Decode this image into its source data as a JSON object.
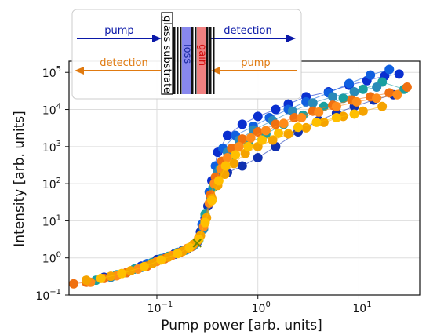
{
  "chart_data": {
    "type": "scatter",
    "xlabel": "Pump power [arb. units]",
    "ylabel": "Intensity [arb. units]",
    "xscale": "log",
    "yscale": "log",
    "xlim": [
      0.0135,
      40
    ],
    "ylim": [
      0.1,
      200000
    ],
    "grid": true,
    "x_ticks": [
      {
        "value": 0.1,
        "base": "10",
        "exp": "−1"
      },
      {
        "value": 1,
        "base": "10",
        "exp": "0"
      },
      {
        "value": 10,
        "base": "10",
        "exp": "1"
      }
    ],
    "y_ticks": [
      {
        "value": 0.1,
        "base": "10",
        "exp": "−1"
      },
      {
        "value": 1,
        "base": "10",
        "exp": "0"
      },
      {
        "value": 10,
        "base": "10",
        "exp": "1"
      },
      {
        "value": 100,
        "base": "10",
        "exp": "2"
      },
      {
        "value": 1000,
        "base": "10",
        "exp": "3"
      },
      {
        "value": 10000,
        "base": "10",
        "exp": "4"
      },
      {
        "value": 100000,
        "base": "10",
        "exp": "5"
      }
    ],
    "series": [
      {
        "color": "#0a2fd0",
        "points": [
          [
            0.07,
            0.6
          ],
          [
            0.1,
            0.85
          ],
          [
            0.15,
            1.25
          ],
          [
            0.2,
            1.7
          ],
          [
            0.25,
            2.6
          ],
          [
            0.3,
            12
          ],
          [
            0.35,
            120
          ],
          [
            0.4,
            700
          ],
          [
            0.5,
            2000
          ],
          [
            0.7,
            4000
          ],
          [
            1.0,
            6500
          ],
          [
            1.5,
            10000
          ],
          [
            2.0,
            14000
          ],
          [
            3.0,
            22000
          ],
          [
            5.0,
            30000
          ],
          [
            8.0,
            45000
          ],
          [
            12.0,
            60000
          ],
          [
            18.0,
            80000
          ],
          [
            25.0,
            90000
          ]
        ]
      },
      {
        "color": "#1060e0",
        "points": [
          [
            0.05,
            0.4
          ],
          [
            0.08,
            0.7
          ],
          [
            0.12,
            1.0
          ],
          [
            0.18,
            1.6
          ],
          [
            0.24,
            2.4
          ],
          [
            0.28,
            8
          ],
          [
            0.33,
            60
          ],
          [
            0.38,
            300
          ],
          [
            0.45,
            900
          ],
          [
            0.6,
            2000
          ],
          [
            0.9,
            3500
          ],
          [
            1.3,
            6000
          ],
          [
            2.0,
            10000
          ],
          [
            3.0,
            16000
          ],
          [
            5.0,
            28000
          ],
          [
            8.0,
            50000
          ],
          [
            13.0,
            85000
          ],
          [
            20.0,
            120000
          ]
        ]
      },
      {
        "color": "#1030b0",
        "points": [
          [
            0.03,
            0.3
          ],
          [
            0.06,
            0.5
          ],
          [
            0.1,
            0.9
          ],
          [
            0.15,
            1.3
          ],
          [
            0.22,
            2.0
          ],
          [
            0.27,
            5
          ],
          [
            0.32,
            25
          ],
          [
            0.38,
            90
          ],
          [
            0.5,
            200
          ],
          [
            0.7,
            300
          ],
          [
            1.0,
            500
          ],
          [
            1.5,
            1000
          ],
          [
            2.5,
            2500
          ],
          [
            4.0,
            5000
          ],
          [
            6.0,
            8000
          ],
          [
            9.0,
            12000
          ],
          [
            14.0,
            18000
          ],
          [
            22.0,
            25000
          ]
        ]
      },
      {
        "color": "#1aa0a0",
        "points": [
          [
            0.025,
            0.25
          ],
          [
            0.04,
            0.35
          ],
          [
            0.06,
            0.5
          ],
          [
            0.09,
            0.75
          ],
          [
            0.13,
            1.1
          ],
          [
            0.19,
            1.6
          ],
          [
            0.26,
            3
          ],
          [
            0.3,
            15
          ],
          [
            0.36,
            80
          ],
          [
            0.42,
            250
          ],
          [
            0.55,
            600
          ],
          [
            0.8,
            1200
          ],
          [
            1.2,
            2200
          ],
          [
            1.8,
            4000
          ],
          [
            2.8,
            7000
          ],
          [
            4.5,
            12000
          ],
          [
            7.0,
            20000
          ],
          [
            11.0,
            35000
          ],
          [
            17.0,
            55000
          ],
          [
            28.0,
            35000
          ]
        ]
      },
      {
        "color": "#2a8ab8",
        "points": [
          [
            0.035,
            0.3
          ],
          [
            0.07,
            0.55
          ],
          [
            0.11,
            0.95
          ],
          [
            0.16,
            1.4
          ],
          [
            0.23,
            2.1
          ],
          [
            0.29,
            6
          ],
          [
            0.34,
            40
          ],
          [
            0.4,
            200
          ],
          [
            0.5,
            700
          ],
          [
            0.65,
            1500
          ],
          [
            0.9,
            2800
          ],
          [
            1.4,
            5000
          ],
          [
            2.2,
            9000
          ],
          [
            3.5,
            15000
          ],
          [
            5.5,
            22000
          ],
          [
            9.0,
            30000
          ],
          [
            15.0,
            40000
          ]
        ]
      },
      {
        "color": "#f07010",
        "points": [
          [
            0.015,
            0.2
          ],
          [
            0.02,
            0.22
          ],
          [
            0.03,
            0.28
          ],
          [
            0.05,
            0.4
          ],
          [
            0.08,
            0.6
          ],
          [
            0.12,
            0.95
          ],
          [
            0.17,
            1.4
          ],
          [
            0.22,
            2.0
          ],
          [
            0.26,
            3.5
          ],
          [
            0.3,
            10
          ],
          [
            0.34,
            50
          ],
          [
            0.38,
            150
          ],
          [
            0.44,
            400
          ],
          [
            0.55,
            900
          ],
          [
            0.7,
            1600
          ],
          [
            1.0,
            2500
          ],
          [
            1.5,
            4000
          ],
          [
            2.3,
            6000
          ],
          [
            3.5,
            9000
          ],
          [
            5.5,
            13000
          ],
          [
            8.5,
            18000
          ],
          [
            13.0,
            22000
          ],
          [
            20.0,
            28000
          ],
          [
            30.0,
            40000
          ]
        ]
      },
      {
        "color": "#ff8c1a",
        "points": [
          [
            0.022,
            0.22
          ],
          [
            0.04,
            0.33
          ],
          [
            0.065,
            0.5
          ],
          [
            0.1,
            0.8
          ],
          [
            0.14,
            1.15
          ],
          [
            0.2,
            1.8
          ],
          [
            0.25,
            2.8
          ],
          [
            0.29,
            7
          ],
          [
            0.33,
            30
          ],
          [
            0.37,
            100
          ],
          [
            0.43,
            250
          ],
          [
            0.5,
            500
          ],
          [
            0.65,
            1000
          ],
          [
            0.85,
            1700
          ],
          [
            1.2,
            2700
          ],
          [
            1.8,
            4200
          ],
          [
            2.7,
            6000
          ],
          [
            4.0,
            8500
          ],
          [
            6.0,
            12000
          ],
          [
            9.5,
            16000
          ],
          [
            15.0,
            20000
          ],
          [
            24.0,
            25000
          ]
        ]
      },
      {
        "color": "#f5a300",
        "points": [
          [
            0.02,
            0.25
          ],
          [
            0.035,
            0.32
          ],
          [
            0.055,
            0.45
          ],
          [
            0.09,
            0.7
          ],
          [
            0.13,
            1.05
          ],
          [
            0.18,
            1.5
          ],
          [
            0.23,
            2.3
          ],
          [
            0.27,
            4
          ],
          [
            0.31,
            12
          ],
          [
            0.35,
            40
          ],
          [
            0.4,
            90
          ],
          [
            0.47,
            180
          ],
          [
            0.58,
            350
          ],
          [
            0.75,
            650
          ],
          [
            1.0,
            1000
          ],
          [
            1.4,
            1500
          ],
          [
            2.0,
            2200
          ],
          [
            3.0,
            3200
          ],
          [
            4.5,
            4500
          ],
          [
            7.0,
            6500
          ],
          [
            11.0,
            9000
          ],
          [
            17.0,
            12000
          ]
        ]
      },
      {
        "color": "#ffbf00",
        "points": [
          [
            0.028,
            0.28
          ],
          [
            0.045,
            0.38
          ],
          [
            0.075,
            0.58
          ],
          [
            0.11,
            0.88
          ],
          [
            0.16,
            1.3
          ],
          [
            0.21,
            1.9
          ],
          [
            0.26,
            3.2
          ],
          [
            0.3,
            9
          ],
          [
            0.35,
            35
          ],
          [
            0.41,
            120
          ],
          [
            0.48,
            300
          ],
          [
            0.6,
            600
          ],
          [
            0.8,
            1000
          ],
          [
            1.1,
            1500
          ],
          [
            1.6,
            2300
          ],
          [
            2.5,
            3300
          ],
          [
            3.8,
            4500
          ],
          [
            6.0,
            6000
          ],
          [
            9.0,
            7500
          ]
        ]
      }
    ],
    "marker": {
      "x": 0.25,
      "y": 2.5,
      "symbol": "x",
      "color": "#6a8a00"
    },
    "inset": {
      "pump_top": "pump",
      "detection_top": "detection",
      "detection_bottom": "detection",
      "pump_bottom": "pump",
      "substrate": "glass substrate",
      "loss": "loss",
      "gain": "gain",
      "colors": {
        "blue_arrow": "#0a18a8",
        "orange_arrow": "#e07a10",
        "loss_band": "#8888ee",
        "gain_band": "#f08080"
      }
    }
  }
}
